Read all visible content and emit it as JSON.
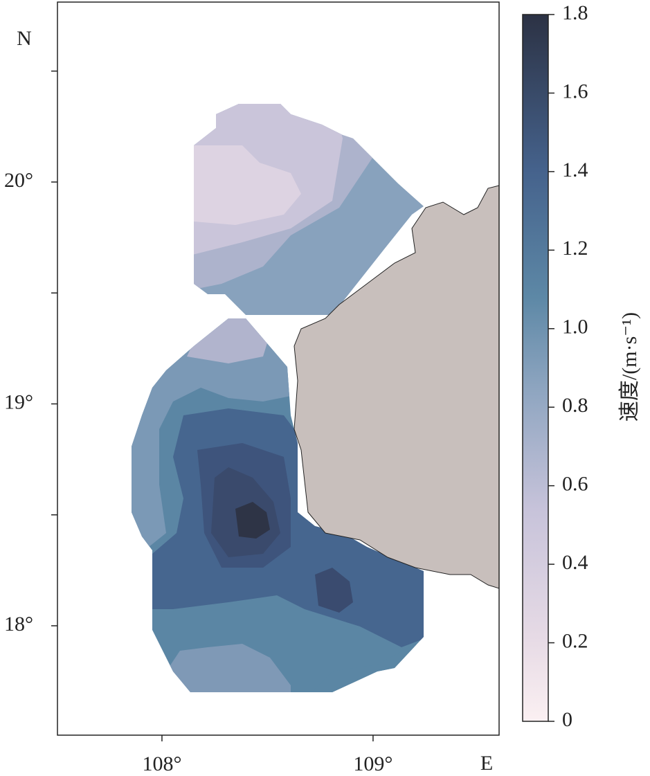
{
  "map": {
    "xlim": [
      107.505,
      109.597
    ],
    "ylim": [
      17.507,
      20.811
    ],
    "xticks": [
      {
        "value": 108,
        "label": "108°"
      },
      {
        "value": 109,
        "label": "109°"
      }
    ],
    "yticks": [
      {
        "value": 18,
        "label": "18°"
      },
      {
        "value": 19,
        "label": "19°"
      },
      {
        "value": 20,
        "label": "20°"
      }
    ],
    "minor_yticks": [
      18.5,
      19.5,
      20.5
    ],
    "x_axis_label": "E",
    "y_axis_label": "N"
  },
  "colorbar": {
    "label": "速度/(m·s⁻¹)",
    "lim": [
      0,
      1.8
    ],
    "ticks": [
      0,
      0.2,
      0.4,
      0.6,
      0.8,
      {
        "value": 1,
        "label": "1.0"
      },
      1.2,
      1.4,
      1.6,
      1.8
    ]
  }
}
